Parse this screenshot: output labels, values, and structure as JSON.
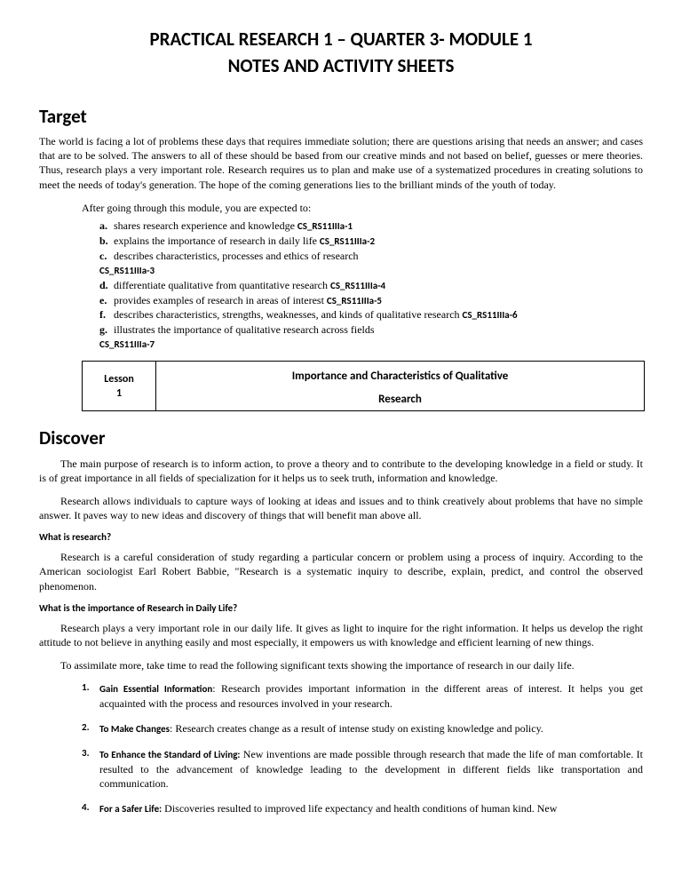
{
  "title_line1": "PRACTICAL RESEARCH 1 – QUARTER 3- MODULE 1",
  "title_line2": "NOTES AND ACTIVITY SHEETS",
  "target": {
    "heading": "Target",
    "intro": "The world is facing a lot of problems these days that requires immediate solution; there are questions arising that needs an answer; and cases that are to be solved. The answers to all of these should be based from our creative minds and not based on belief, guesses or mere theories. Thus, research plays a very important role. Research requires us to plan and make use of a systematized procedures in creating solutions to meet the needs of today's generation. The hope of the coming generations lies to the brilliant minds of the youth of today.",
    "after": "After going through this module, you are expected to:",
    "objectives": [
      {
        "marker": "a.",
        "text": "shares research experience and knowledge ",
        "code": "CS_RS11IIIa-1"
      },
      {
        "marker": "b.",
        "text": "explains the importance of research in daily life ",
        "code": "CS_RS11IIIa-2"
      },
      {
        "marker": "c.",
        "text": "describes characteristics, processes and ethics of research",
        "code": "CS_RS11IIIa-3",
        "codeNewline": true
      },
      {
        "marker": "d.",
        "text": "differentiate qualitative from quantitative   research ",
        "code": "CS_RS11IIIa-4"
      },
      {
        "marker": "e.",
        "text": "provides examples of research in areas of interest ",
        "code": "CS_RS11IIIa-5"
      },
      {
        "marker": "f.",
        "text": "describes characteristics, strengths, weaknesses, and kinds of qualitative research ",
        "code": "CS_RS11IIIa-6",
        "justify": true
      },
      {
        "marker": "g.",
        "text": "illustrates the importance of qualitative research across fields",
        "code": "CS_RS11IIIa-7",
        "codeNewline": true,
        "justify": true
      }
    ]
  },
  "lesson": {
    "left_label": "Lesson",
    "left_num": "1",
    "right_line1": "Importance and Characteristics of Qualitative",
    "right_line2": "Research"
  },
  "discover": {
    "heading": "Discover",
    "p1": "The main purpose of research is to inform action, to prove a theory and to contribute to the developing knowledge in a field or study. It is of great importance in all fields of specialization for it helps us to seek truth, information and knowledge.",
    "p2": "Research allows individuals to capture ways of looking at ideas and issues  and to think creatively about problems that have no simple answer. It paves way to new ideas and discovery of things that will benefit man above all.",
    "sub1": "What is research?",
    "p3": "Research is a careful consideration of study regarding a particular concern or problem using a process of inquiry. According to the American sociologist Earl Robert Babbie, \"Research is a systematic inquiry to describe, explain, predict, and control the observed  phenomenon.",
    "sub2": "What is the importance of Research in Daily Life?",
    "p4": "Research plays a very important role in our daily life. It gives as light to inquire for the right information. It helps us develop the right attitude to not believe in anything easily and most especially, it empowers us with knowledge and efficient learning of new  things.",
    "p5": "To assimilate more, take time to read the following significant texts showing the importance of research in our daily life.",
    "items": [
      {
        "num": "1.",
        "lead": "Gain Essential Information",
        "text": ": Research provides important information in the different areas of interest. It helps you get acquainted with the process and resources involved in your  research."
      },
      {
        "num": "2.",
        "lead": "To Make Changes",
        "text": ": Research creates change as a result of intense study on existing knowledge and  policy."
      },
      {
        "num": "3.",
        "lead": "To Enhance the Standard of Living:",
        "text": " New inventions are made possible through research that made the life of man comfortable. It resulted to the advancement of knowledge leading to the development in different fields like transportation and communication."
      },
      {
        "num": "4.",
        "lead": "For a Safer Life:",
        "text": " Discoveries resulted to improved life expectancy and health conditions of human kind. New"
      }
    ]
  }
}
